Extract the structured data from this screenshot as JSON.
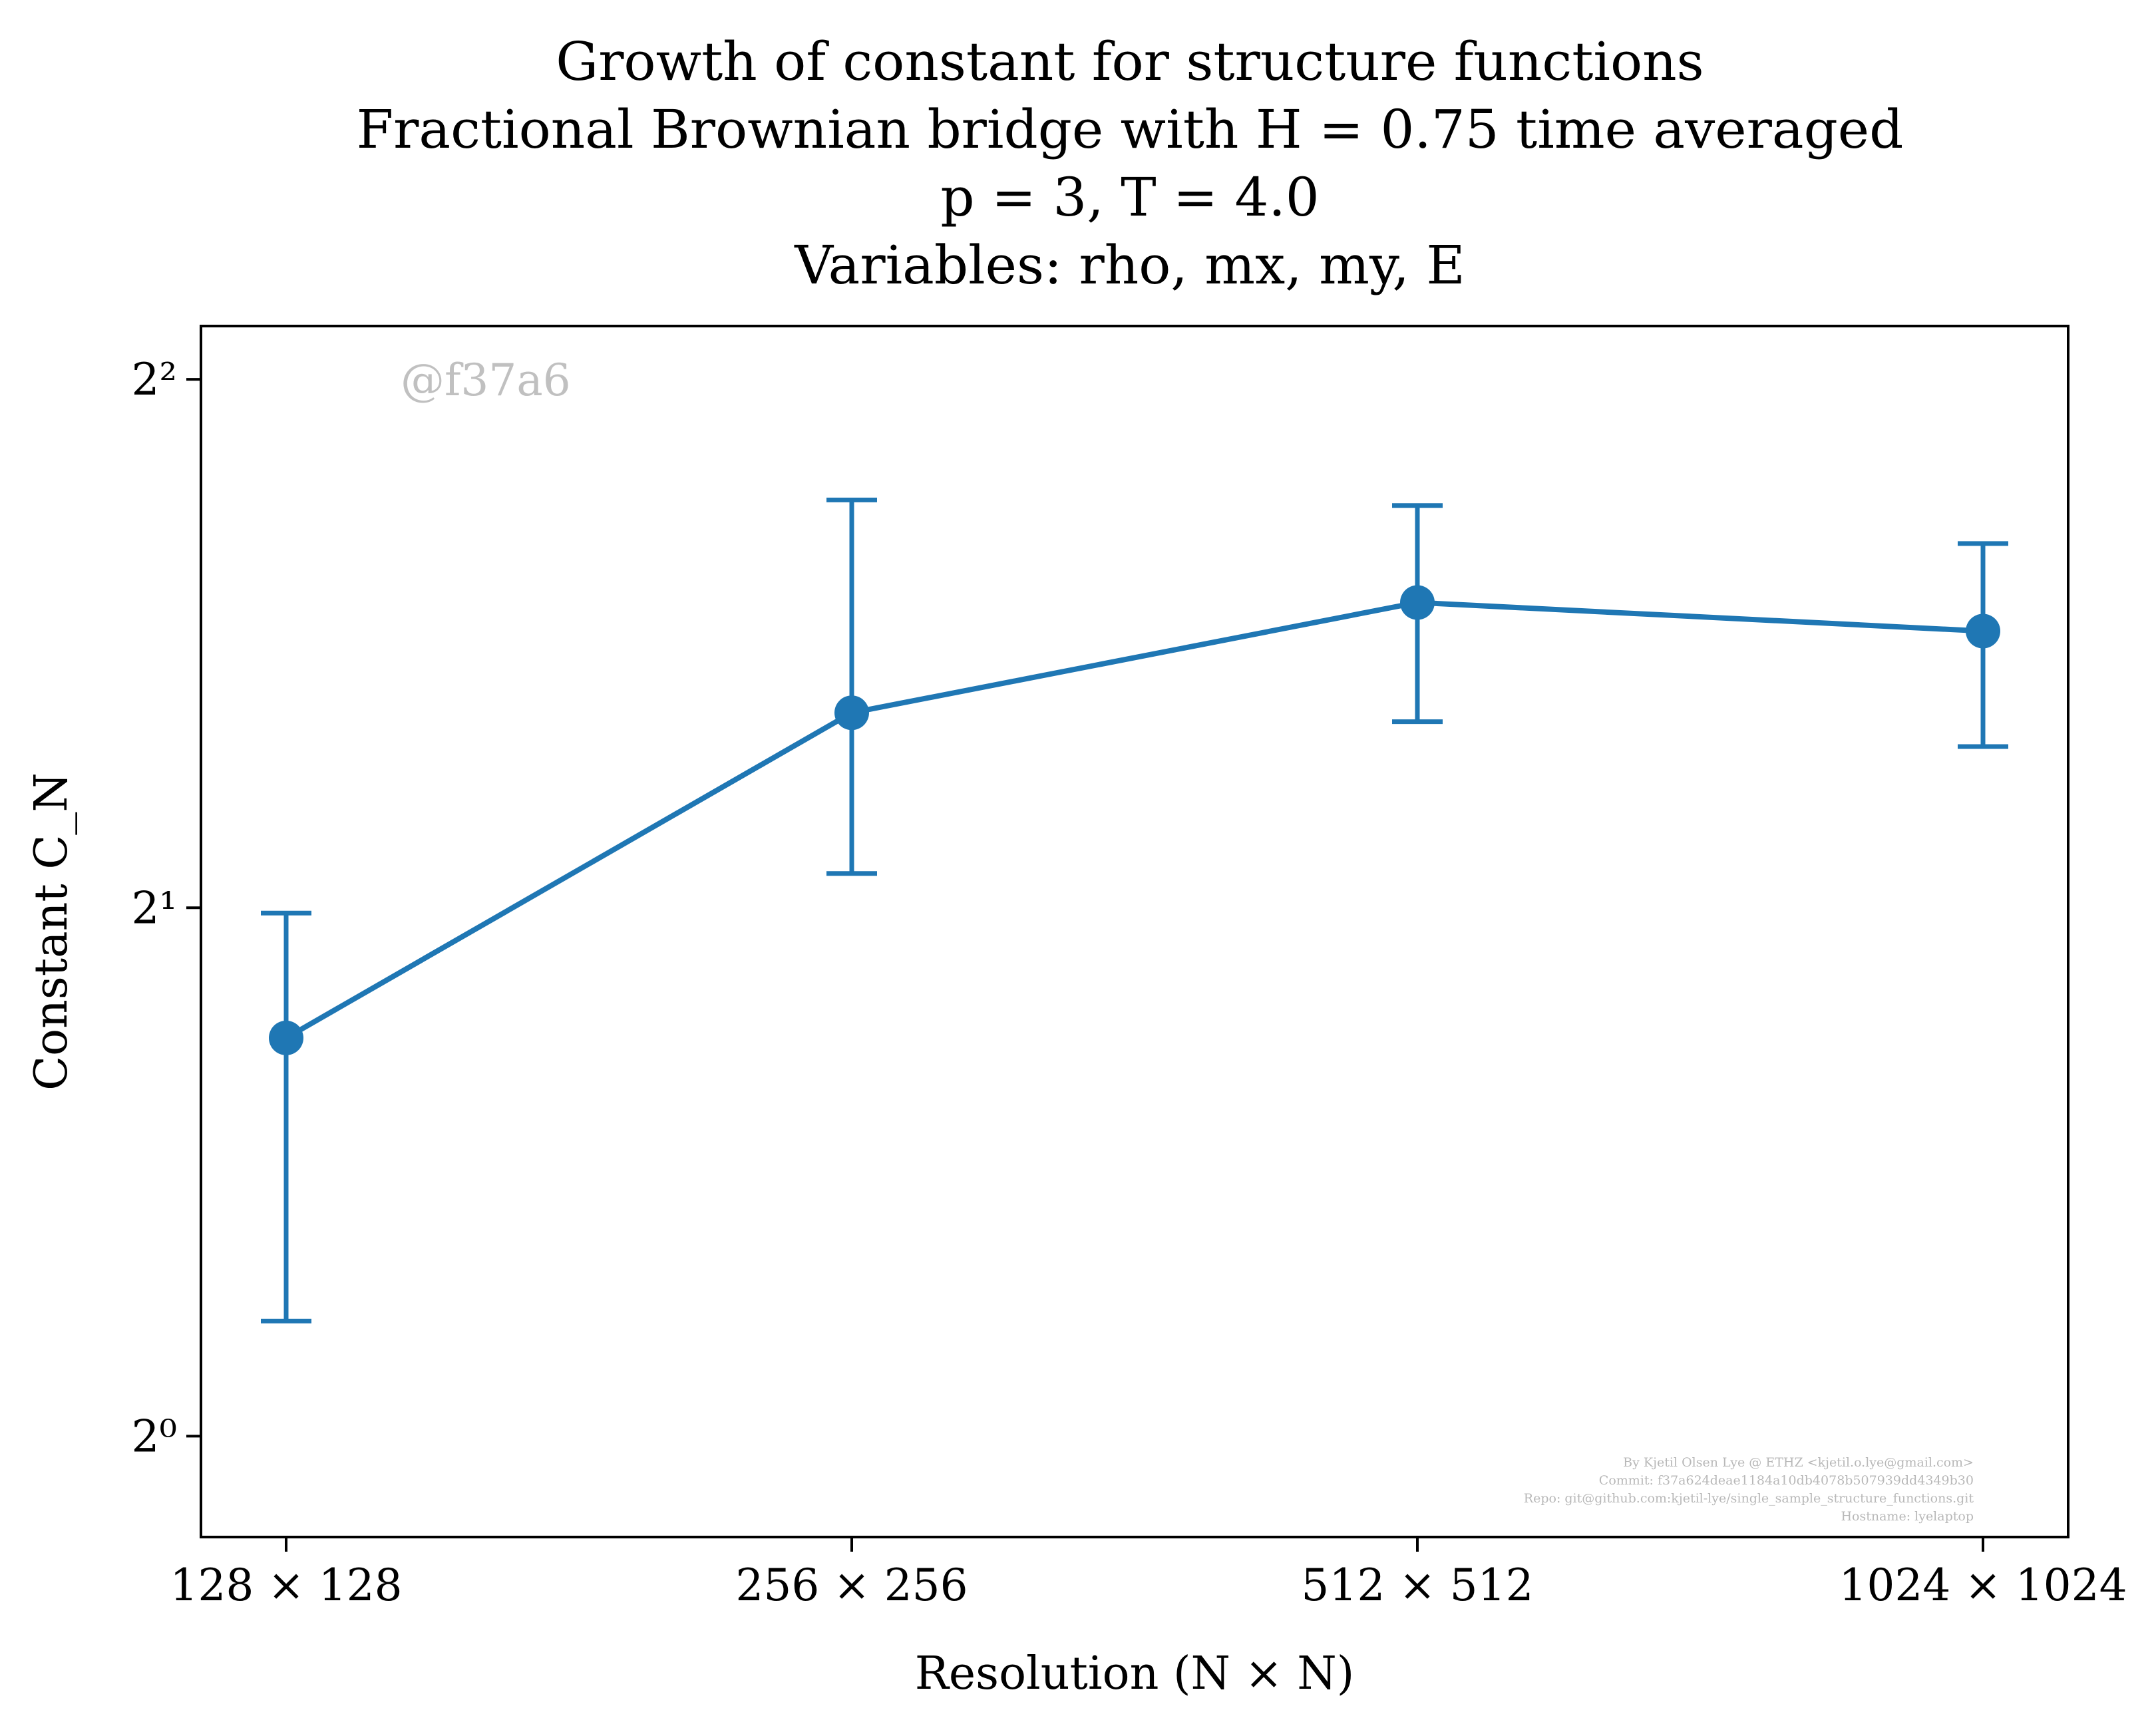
{
  "chart_data": {
    "type": "line",
    "title_lines": [
      "Growth of constant for structure functions",
      "Fractional Brownian bridge with H = 0.75 time averaged",
      "p = 3, T = 4.0",
      "Variables: rho, mx, my, E"
    ],
    "xlabel": "Resolution (N × N)",
    "ylabel": "Constant C_N",
    "categories": [
      "128 × 128",
      "256 × 256",
      "512 × 512",
      "1024 × 1024"
    ],
    "y_scale": "log2",
    "ylim": [
      0.876,
      4.29
    ],
    "y_ticks": [
      {
        "value": 1,
        "label": "2⁰"
      },
      {
        "value": 2,
        "label": "2¹"
      },
      {
        "value": 4,
        "label": "2²"
      }
    ],
    "series": [
      {
        "values": [
          1.686,
          2.583,
          2.985,
          2.875
        ],
        "err_low": [
          1.163,
          2.092,
          2.553,
          2.471
        ],
        "err_high": [
          1.986,
          3.415,
          3.39,
          3.225
        ],
        "color": "#1f77b4"
      }
    ],
    "grid": false,
    "legend": "none",
    "watermark": "@f37a6",
    "credits": [
      "By Kjetil Olsen Lye @ ETHZ <kjetil.o.lye@gmail.com>",
      "Commit: f37a624deae1184a10db4078b507939dd4349b30",
      "Repo: git@github.com:kjetil-lye/single_sample_structure_functions.git",
      "Hostname: lyelaptop"
    ]
  }
}
